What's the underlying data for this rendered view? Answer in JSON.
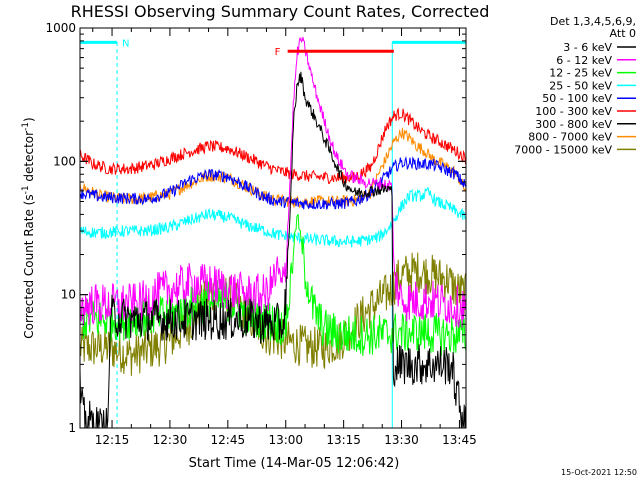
{
  "chart_data": {
    "type": "line",
    "title": "RHESSI Observing Summary Count Rates, Corrected",
    "xlabel": "Start Time (14-Mar-05 12:06:42)",
    "ylabel": "Corrected Count Rate (s⁻¹ detector⁻¹)",
    "ylabel_parts": [
      "Corrected Count Rate (s",
      "-1",
      " detector",
      "-1",
      ")"
    ],
    "yscale": "log",
    "ylim": [
      1,
      1000
    ],
    "xlim_minutes": [
      6.7,
      106.7
    ],
    "xticks": [
      {
        "m": 15,
        "label": "12:15"
      },
      {
        "m": 30,
        "label": "12:30"
      },
      {
        "m": 45,
        "label": "12:45"
      },
      {
        "m": 60,
        "label": "13:00"
      },
      {
        "m": 75,
        "label": "13:15"
      },
      {
        "m": 90,
        "label": "13:30"
      },
      {
        "m": 105,
        "label": "13:45"
      }
    ],
    "yticks": [
      {
        "v": 1,
        "label": "1"
      },
      {
        "v": 10,
        "label": "10"
      },
      {
        "v": 100,
        "label": "100"
      },
      {
        "v": 1000,
        "label": "1000"
      }
    ],
    "legend_header": [
      "Det 1,3,4,5,6,9,",
      "Att 0"
    ],
    "legend_placement": "right",
    "series": [
      {
        "name": "3 - 6 keV",
        "color": "#000000",
        "points": [
          [
            6.7,
            2
          ],
          [
            7.5,
            1.2
          ],
          [
            12,
            1
          ],
          [
            14,
            1
          ],
          [
            14.5,
            7
          ],
          [
            20,
            6.5
          ],
          [
            27,
            6.5
          ],
          [
            31,
            6.5
          ],
          [
            37,
            6.5
          ],
          [
            45,
            6.5
          ],
          [
            50,
            6.5
          ],
          [
            55,
            6
          ],
          [
            59.5,
            6
          ],
          [
            61,
            30
          ],
          [
            62,
            200
          ],
          [
            63,
            380
          ],
          [
            64,
            440
          ],
          [
            65,
            300
          ],
          [
            68,
            200
          ],
          [
            72,
            110
          ],
          [
            75,
            70
          ],
          [
            78,
            58
          ],
          [
            82,
            60
          ],
          [
            86,
            62
          ],
          [
            87.5,
            62
          ],
          [
            87.8,
            3
          ],
          [
            89,
            3
          ],
          [
            95,
            3
          ],
          [
            100,
            3
          ],
          [
            103,
            3
          ],
          [
            104,
            2
          ],
          [
            105,
            1.5
          ],
          [
            106.7,
            1
          ]
        ]
      },
      {
        "name": "6 - 12 keV",
        "color": "#ff00ff",
        "points": [
          [
            6.7,
            8
          ],
          [
            10,
            8.5
          ],
          [
            14,
            8.5
          ],
          [
            18,
            8.5
          ],
          [
            22,
            8.5
          ],
          [
            26,
            10
          ],
          [
            30,
            11
          ],
          [
            35,
            12
          ],
          [
            40,
            12
          ],
          [
            45,
            11
          ],
          [
            50,
            10
          ],
          [
            55,
            10
          ],
          [
            58,
            15
          ],
          [
            59,
            11
          ],
          [
            60,
            16
          ],
          [
            61,
            60
          ],
          [
            62,
            280
          ],
          [
            63,
            650
          ],
          [
            64,
            850
          ],
          [
            65,
            700
          ],
          [
            67,
            400
          ],
          [
            70,
            200
          ],
          [
            73,
            110
          ],
          [
            76,
            80
          ],
          [
            80,
            70
          ],
          [
            84,
            68
          ],
          [
            87.5,
            66
          ],
          [
            88,
            14
          ],
          [
            90,
            9
          ],
          [
            94,
            9
          ],
          [
            98,
            9
          ],
          [
            102,
            8.5
          ],
          [
            106.7,
            8
          ]
        ]
      },
      {
        "name": "12 - 25 keV",
        "color": "#00ff00",
        "points": [
          [
            6.7,
            6.5
          ],
          [
            12,
            6.5
          ],
          [
            18,
            6.5
          ],
          [
            24,
            7
          ],
          [
            30,
            7
          ],
          [
            35,
            8
          ],
          [
            40,
            9
          ],
          [
            45,
            9
          ],
          [
            50,
            7
          ],
          [
            55,
            6.5
          ],
          [
            58,
            6
          ],
          [
            60,
            6
          ],
          [
            61,
            10
          ],
          [
            62,
            22
          ],
          [
            63,
            40
          ],
          [
            64,
            25
          ],
          [
            65,
            15
          ],
          [
            67,
            8
          ],
          [
            70,
            5.5
          ],
          [
            74,
            5
          ],
          [
            78,
            5
          ],
          [
            82,
            5
          ],
          [
            86,
            5
          ],
          [
            88,
            5.2
          ],
          [
            92,
            5.2
          ],
          [
            96,
            5.2
          ],
          [
            100,
            5
          ],
          [
            104,
            5
          ],
          [
            106.7,
            5
          ]
        ]
      },
      {
        "name": "25 - 50 keV",
        "color": "#00ffff",
        "points": [
          [
            6.7,
            30
          ],
          [
            12,
            29
          ],
          [
            18,
            30
          ],
          [
            24,
            30
          ],
          [
            30,
            32
          ],
          [
            35,
            36
          ],
          [
            40,
            40
          ],
          [
            45,
            38
          ],
          [
            50,
            33
          ],
          [
            55,
            30
          ],
          [
            58,
            28
          ],
          [
            62,
            27
          ],
          [
            66,
            26
          ],
          [
            70,
            25.5
          ],
          [
            74,
            25
          ],
          [
            78,
            25
          ],
          [
            82,
            26
          ],
          [
            84,
            27
          ],
          [
            86,
            30
          ],
          [
            88,
            36
          ],
          [
            90,
            46
          ],
          [
            92,
            55
          ],
          [
            95,
            55
          ],
          [
            97,
            58
          ],
          [
            99,
            50
          ],
          [
            102,
            46
          ],
          [
            104,
            42
          ],
          [
            106.7,
            38
          ]
        ]
      },
      {
        "name": "50 - 100 keV",
        "color": "#0000ff",
        "points": [
          [
            6.7,
            58
          ],
          [
            12,
            54
          ],
          [
            18,
            53
          ],
          [
            24,
            52
          ],
          [
            30,
            58
          ],
          [
            35,
            72
          ],
          [
            40,
            80
          ],
          [
            45,
            77
          ],
          [
            50,
            64
          ],
          [
            55,
            53
          ],
          [
            58,
            50
          ],
          [
            62,
            49
          ],
          [
            66,
            48
          ],
          [
            70,
            48
          ],
          [
            74,
            48
          ],
          [
            78,
            50
          ],
          [
            82,
            58
          ],
          [
            86,
            78
          ],
          [
            88,
            90
          ],
          [
            90,
            98
          ],
          [
            94,
            96
          ],
          [
            98,
            95
          ],
          [
            102,
            85
          ],
          [
            104,
            80
          ],
          [
            106.7,
            65
          ]
        ]
      },
      {
        "name": "100 - 300 keV",
        "color": "#ff0000",
        "points": [
          [
            6.7,
            112
          ],
          [
            10,
            96
          ],
          [
            14,
            88
          ],
          [
            20,
            88
          ],
          [
            26,
            95
          ],
          [
            30,
            105
          ],
          [
            35,
            118
          ],
          [
            40,
            130
          ],
          [
            45,
            125
          ],
          [
            50,
            108
          ],
          [
            55,
            92
          ],
          [
            58,
            85
          ],
          [
            62,
            80
          ],
          [
            66,
            77
          ],
          [
            70,
            76
          ],
          [
            74,
            75
          ],
          [
            78,
            76
          ],
          [
            82,
            90
          ],
          [
            84,
            125
          ],
          [
            86,
            180
          ],
          [
            88,
            220
          ],
          [
            90,
            230
          ],
          [
            92,
            205
          ],
          [
            95,
            170
          ],
          [
            98,
            150
          ],
          [
            100,
            140
          ],
          [
            104,
            120
          ],
          [
            106.7,
            105
          ]
        ]
      },
      {
        "name": "300 - 800 keV",
        "color": "#000000",
        "points": [
          [
            6.7,
            1
          ],
          [
            106.7,
            1
          ]
        ]
      },
      {
        "name": "800 - 7000 keV",
        "color": "#ff8c00",
        "points": [
          [
            6.7,
            65
          ],
          [
            12,
            55
          ],
          [
            18,
            52
          ],
          [
            24,
            53
          ],
          [
            30,
            57
          ],
          [
            35,
            68
          ],
          [
            40,
            78
          ],
          [
            45,
            76
          ],
          [
            50,
            64
          ],
          [
            55,
            54
          ],
          [
            58,
            51
          ],
          [
            62,
            50
          ],
          [
            66,
            50
          ],
          [
            70,
            50
          ],
          [
            74,
            50
          ],
          [
            78,
            51
          ],
          [
            82,
            58
          ],
          [
            84,
            80
          ],
          [
            86,
            105
          ],
          [
            88,
            140
          ],
          [
            90,
            165
          ],
          [
            92,
            150
          ],
          [
            94,
            130
          ],
          [
            96,
            120
          ],
          [
            98,
            105
          ],
          [
            102,
            90
          ],
          [
            104,
            82
          ],
          [
            106.7,
            60
          ]
        ]
      },
      {
        "name": "7000 - 15000 keV",
        "color": "#808000",
        "points": [
          [
            6.7,
            4
          ],
          [
            14,
            4
          ],
          [
            20,
            3.5
          ],
          [
            26,
            4
          ],
          [
            30,
            4.5
          ],
          [
            35,
            6
          ],
          [
            40,
            10
          ],
          [
            45,
            10
          ],
          [
            50,
            7
          ],
          [
            55,
            5
          ],
          [
            60,
            4.5
          ],
          [
            66,
            4
          ],
          [
            70,
            4
          ],
          [
            74,
            4.5
          ],
          [
            78,
            6
          ],
          [
            82,
            8
          ],
          [
            86,
            10
          ],
          [
            90,
            14
          ],
          [
            94,
            15
          ],
          [
            98,
            14
          ],
          [
            102,
            13
          ],
          [
            104,
            11
          ],
          [
            106.7,
            10
          ]
        ]
      }
    ],
    "flags": [
      {
        "label": "N",
        "color": "#00ffff",
        "ranges": [
          [
            6.7,
            16.3
          ],
          [
            87.6,
            106.7
          ]
        ],
        "value": 780
      },
      {
        "label": "F",
        "color": "#ff0000",
        "ranges": [
          [
            60.5,
            88
          ]
        ],
        "value": 670
      }
    ],
    "vlines": [
      {
        "m": 16.3,
        "color": "#00ffff"
      },
      {
        "m": 87.6,
        "color": "#00ffff"
      },
      {
        "m": 106.7,
        "color": "#00ffff"
      }
    ],
    "footer": "15-Oct-2021 12:50"
  },
  "colors": {
    "background": "#ffffff",
    "axis": "#000000",
    "text": "#000000"
  }
}
